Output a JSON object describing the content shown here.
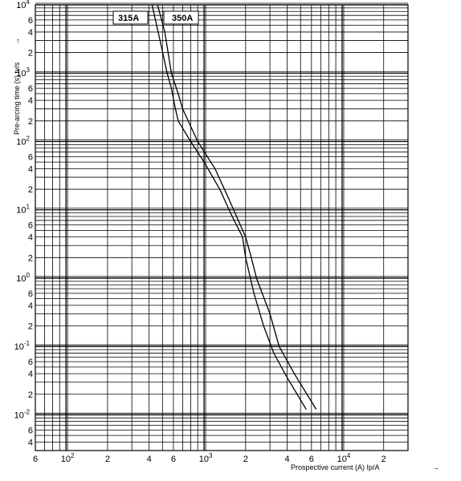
{
  "chart_data": {
    "type": "line",
    "title": "",
    "xlabel": "Prospective current (A) Ip/A",
    "ylabel": "Pre-arcing time (s) tv/s",
    "x_scale": "log",
    "y_scale": "log",
    "xlim": [
      60,
      30000
    ],
    "ylim": [
      0.003,
      10000
    ],
    "grid": true,
    "x_ticks": [
      {
        "value": 60,
        "label": "6",
        "sup": ""
      },
      {
        "value": 100,
        "label": "10",
        "sup": "2"
      },
      {
        "value": 200,
        "label": "2",
        "sup": ""
      },
      {
        "value": 400,
        "label": "4",
        "sup": ""
      },
      {
        "value": 600,
        "label": "6",
        "sup": ""
      },
      {
        "value": 1000,
        "label": "10",
        "sup": "3"
      },
      {
        "value": 2000,
        "label": "2",
        "sup": ""
      },
      {
        "value": 4000,
        "label": "4",
        "sup": ""
      },
      {
        "value": 6000,
        "label": "6",
        "sup": ""
      },
      {
        "value": 10000,
        "label": "10",
        "sup": "4"
      },
      {
        "value": 20000,
        "label": "2",
        "sup": ""
      }
    ],
    "y_ticks": [
      {
        "value": 10000,
        "label": "10",
        "sup": "4"
      },
      {
        "value": 6000,
        "label": "6",
        "sup": ""
      },
      {
        "value": 4000,
        "label": "4",
        "sup": ""
      },
      {
        "value": 2000,
        "label": "2",
        "sup": ""
      },
      {
        "value": 1000,
        "label": "10",
        "sup": "3"
      },
      {
        "value": 600,
        "label": "6",
        "sup": ""
      },
      {
        "value": 400,
        "label": "4",
        "sup": ""
      },
      {
        "value": 200,
        "label": "2",
        "sup": ""
      },
      {
        "value": 100,
        "label": "10",
        "sup": "2"
      },
      {
        "value": 60,
        "label": "6",
        "sup": ""
      },
      {
        "value": 40,
        "label": "4",
        "sup": ""
      },
      {
        "value": 20,
        "label": "2",
        "sup": ""
      },
      {
        "value": 10,
        "label": "10",
        "sup": "1"
      },
      {
        "value": 6,
        "label": "6",
        "sup": ""
      },
      {
        "value": 4,
        "label": "4",
        "sup": ""
      },
      {
        "value": 2,
        "label": "2",
        "sup": ""
      },
      {
        "value": 1,
        "label": "10",
        "sup": "0"
      },
      {
        "value": 0.6,
        "label": "6",
        "sup": ""
      },
      {
        "value": 0.4,
        "label": "4",
        "sup": ""
      },
      {
        "value": 0.2,
        "label": "2",
        "sup": ""
      },
      {
        "value": 0.1,
        "label": "10",
        "sup": "-1"
      },
      {
        "value": 0.06,
        "label": "6",
        "sup": ""
      },
      {
        "value": 0.04,
        "label": "4",
        "sup": ""
      },
      {
        "value": 0.02,
        "label": "2",
        "sup": ""
      },
      {
        "value": 0.01,
        "label": "10",
        "sup": "-2"
      },
      {
        "value": 0.006,
        "label": "6",
        "sup": ""
      },
      {
        "value": 0.004,
        "label": "4",
        "sup": ""
      }
    ],
    "series": [
      {
        "name": "315A",
        "color": "#000000",
        "points": [
          [
            420,
            10000
          ],
          [
            480,
            3000
          ],
          [
            540,
            1000
          ],
          [
            580,
            600
          ],
          [
            620,
            300
          ],
          [
            650,
            200
          ],
          [
            800,
            100
          ],
          [
            1000,
            50
          ],
          [
            1300,
            20
          ],
          [
            1600,
            8
          ],
          [
            1900,
            4
          ],
          [
            2000,
            2
          ],
          [
            2300,
            0.6
          ],
          [
            2700,
            0.2
          ],
          [
            3200,
            0.08
          ],
          [
            4000,
            0.035
          ],
          [
            5500,
            0.012
          ]
        ]
      },
      {
        "name": "350A",
        "color": "#000000",
        "points": [
          [
            460,
            10000
          ],
          [
            520,
            4000
          ],
          [
            580,
            1000
          ],
          [
            650,
            500
          ],
          [
            700,
            300
          ],
          [
            900,
            100
          ],
          [
            1200,
            40
          ],
          [
            1500,
            15
          ],
          [
            2000,
            4
          ],
          [
            2200,
            2
          ],
          [
            2400,
            1
          ],
          [
            3000,
            0.3
          ],
          [
            3500,
            0.1
          ],
          [
            4500,
            0.04
          ],
          [
            6500,
            0.012
          ]
        ]
      }
    ],
    "legend": [
      {
        "label": "315A"
      },
      {
        "label": "350A"
      }
    ],
    "axis_arrow": "→"
  }
}
